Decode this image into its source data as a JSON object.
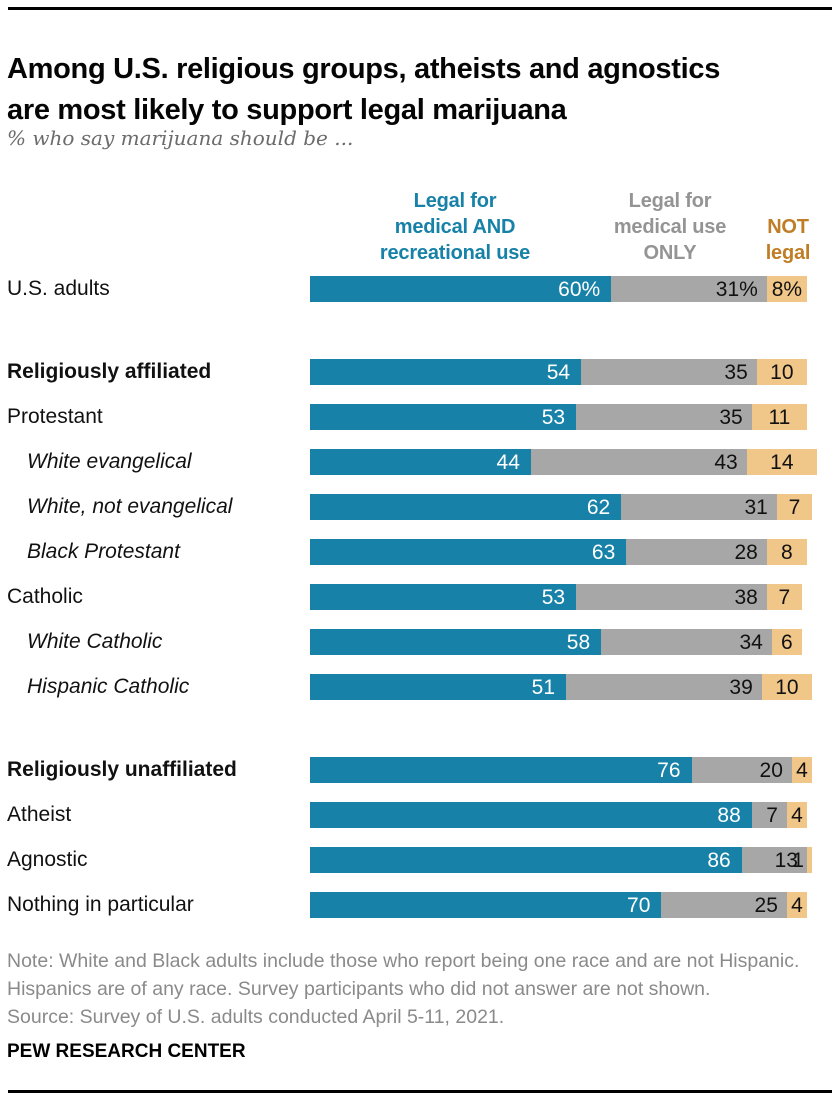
{
  "header": {
    "title_lines": [
      "Among U.S. religious groups, atheists and agnostics",
      "are most likely to support legal marijuana"
    ],
    "subtitle": "% who say marijuana should be ..."
  },
  "legend": {
    "col1_lines": [
      "Legal for",
      "medical AND",
      "recreational use"
    ],
    "col2_lines": [
      "Legal for",
      "medical use",
      "ONLY"
    ],
    "col3_lines": [
      "NOT",
      "legal"
    ],
    "col1_color": "#1781a8",
    "col2_color": "#949494",
    "col3_color": "#bf7e26"
  },
  "chart_data": {
    "type": "bar",
    "orientation": "horizontal",
    "stacked": true,
    "xlim": [
      0,
      100
    ],
    "grid": false,
    "series_names": [
      "Legal for medical AND recreational use",
      "Legal for medical use ONLY",
      "NOT legal"
    ],
    "series_colors": [
      "#1781a8",
      "#a7a7a7",
      "#f0c689"
    ],
    "rows": [
      {
        "label": "U.S. adults",
        "bold": false,
        "italic": false,
        "gap_before": false,
        "values": [
          60,
          31,
          8
        ],
        "value_labels": [
          "60%",
          "31%",
          "8%"
        ]
      },
      {
        "label": "Religiously affiliated",
        "bold": true,
        "italic": false,
        "gap_before": true,
        "values": [
          54,
          35,
          10
        ],
        "value_labels": [
          "54",
          "35",
          "10"
        ]
      },
      {
        "label": "Protestant",
        "bold": false,
        "italic": false,
        "gap_before": false,
        "values": [
          53,
          35,
          11
        ],
        "value_labels": [
          "53",
          "35",
          "11"
        ]
      },
      {
        "label": "White evangelical",
        "bold": false,
        "italic": true,
        "gap_before": false,
        "values": [
          44,
          43,
          14
        ],
        "value_labels": [
          "44",
          "43",
          "14"
        ]
      },
      {
        "label": "White, not evangelical",
        "bold": false,
        "italic": true,
        "gap_before": false,
        "values": [
          62,
          31,
          7
        ],
        "value_labels": [
          "62",
          "31",
          "7"
        ]
      },
      {
        "label": "Black Protestant",
        "bold": false,
        "italic": true,
        "gap_before": false,
        "values": [
          63,
          28,
          8
        ],
        "value_labels": [
          "63",
          "28",
          "8"
        ]
      },
      {
        "label": "Catholic",
        "bold": false,
        "italic": false,
        "gap_before": false,
        "values": [
          53,
          38,
          7
        ],
        "value_labels": [
          "53",
          "38",
          "7"
        ]
      },
      {
        "label": "White Catholic",
        "bold": false,
        "italic": true,
        "gap_before": false,
        "values": [
          58,
          34,
          6
        ],
        "value_labels": [
          "58",
          "34",
          "6"
        ]
      },
      {
        "label": "Hispanic Catholic",
        "bold": false,
        "italic": true,
        "gap_before": false,
        "values": [
          51,
          39,
          10
        ],
        "value_labels": [
          "51",
          "39",
          "10"
        ]
      },
      {
        "label": "Religiously unaffiliated",
        "bold": true,
        "italic": false,
        "gap_before": true,
        "values": [
          76,
          20,
          4
        ],
        "value_labels": [
          "76",
          "20",
          "4"
        ]
      },
      {
        "label": "Atheist",
        "bold": false,
        "italic": false,
        "gap_before": false,
        "values": [
          88,
          7,
          4
        ],
        "value_labels": [
          "88",
          "7",
          "4"
        ]
      },
      {
        "label": "Agnostic",
        "bold": false,
        "italic": false,
        "gap_before": false,
        "values": [
          86,
          13,
          1
        ],
        "value_labels": [
          "86",
          "13",
          "1"
        ]
      },
      {
        "label": "Nothing in particular",
        "bold": false,
        "italic": false,
        "gap_before": false,
        "values": [
          70,
          25,
          4
        ],
        "value_labels": [
          "70",
          "25",
          "4"
        ]
      }
    ]
  },
  "footer": {
    "note": "Note: White and Black adults include those who report being one race and are not Hispanic. Hispanics are of any race. Survey participants who did not answer are not shown.",
    "source": "Source: Survey of U.S. adults conducted April 5-11, 2021.",
    "brand": "PEW RESEARCH CENTER"
  }
}
